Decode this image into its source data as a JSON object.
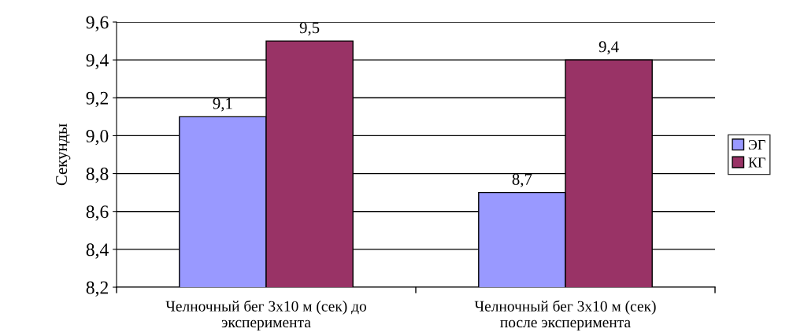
{
  "chart_data": {
    "type": "bar",
    "ylabel": "Секунды",
    "categories": [
      "Челночный бег 3x10 м (сек) до\nэксперимента",
      "Челночный бег 3x10 м (сек)\nпосле эксперимента"
    ],
    "series": [
      {
        "name": "ЭГ",
        "color": "#9999ff",
        "values": [
          9.1,
          8.7
        ],
        "value_labels": [
          "9,1",
          "8,7"
        ]
      },
      {
        "name": "КГ",
        "color": "#993366",
        "values": [
          9.5,
          9.4
        ],
        "value_labels": [
          "9,5",
          "9,4"
        ]
      }
    ],
    "ylim": [
      8.2,
      9.6
    ],
    "yticks": [
      {
        "value": 8.2,
        "label": "8,2"
      },
      {
        "value": 8.4,
        "label": "8,4"
      },
      {
        "value": 8.6,
        "label": "8,6"
      },
      {
        "value": 8.8,
        "label": "8,8"
      },
      {
        "value": 9.0,
        "label": "9,0"
      },
      {
        "value": 9.2,
        "label": "9,2"
      },
      {
        "value": 9.4,
        "label": "9,4"
      },
      {
        "value": 9.6,
        "label": "9,6"
      }
    ],
    "grid": "y",
    "legend": "right"
  }
}
